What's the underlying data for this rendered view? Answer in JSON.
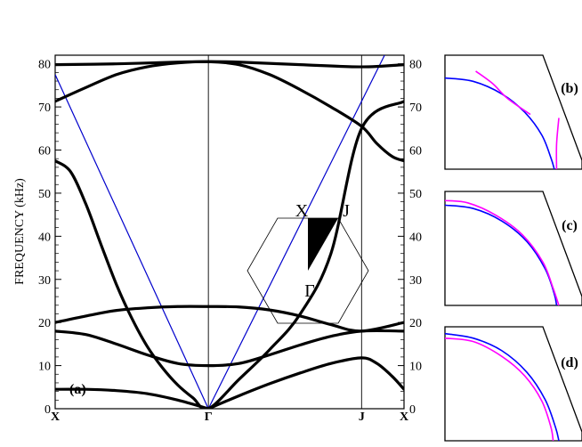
{
  "chart_data": [
    {
      "type": "line",
      "panel_label": "(a)",
      "ylabel": "FREQUENCY (kHz)",
      "ylim": [
        0,
        82
      ],
      "yticks_left": [
        "0",
        "10",
        "20",
        "30",
        "40",
        "50",
        "60",
        "70",
        "80"
      ],
      "yticks_right": [
        "0",
        "10",
        "20",
        "30",
        "40",
        "50",
        "60",
        "70",
        "80"
      ],
      "x_points": [
        "X",
        "Γ",
        "J",
        "X"
      ],
      "x_point_positions": [
        0,
        1,
        2,
        2.277
      ],
      "grid": false,
      "bands": [
        {
          "x": [
            0,
            0.2,
            0.4,
            0.6,
            0.8,
            1.0
          ],
          "y": [
            4.5,
            4.5,
            4.2,
            3.5,
            2.0,
            0
          ]
        },
        {
          "x": [
            1.0,
            1.2,
            1.4,
            1.6,
            1.8,
            2.0,
            2.1,
            2.2,
            2.277
          ],
          "y": [
            0,
            3.0,
            5.8,
            8.3,
            10.5,
            11.8,
            10.5,
            7.5,
            4.5
          ]
        },
        {
          "x": [
            0,
            0.2,
            0.4,
            0.6,
            0.8,
            1.0,
            1.2,
            1.4,
            1.6,
            1.8,
            2.0,
            2.277
          ],
          "y": [
            18.0,
            17.2,
            15.0,
            12.5,
            10.5,
            10.0,
            10.5,
            12.5,
            14.8,
            16.8,
            18.0,
            18.0
          ]
        },
        {
          "x": [
            0,
            0.2,
            0.4,
            0.6,
            0.8,
            1.0,
            1.2,
            1.4,
            1.6,
            1.8,
            2.0,
            2.277
          ],
          "y": [
            20.0,
            21.5,
            22.8,
            23.4,
            23.7,
            23.7,
            23.6,
            22.9,
            21.5,
            19.5,
            18.0,
            20.0
          ]
        },
        {
          "x": [
            0,
            0.1,
            0.2,
            0.3,
            0.4,
            0.5,
            0.6,
            0.7,
            0.8,
            0.9,
            1.0,
            1.2,
            1.4,
            1.6,
            1.8,
            2.0,
            2.277
          ],
          "y": [
            57.5,
            55.0,
            47.5,
            38.0,
            28.8,
            21.0,
            14.5,
            9.5,
            5.5,
            2.5,
            0,
            6.8,
            13.7,
            22.0,
            36.0,
            65.0,
            71.3
          ]
        },
        {
          "x": [
            0,
            0.2,
            0.4,
            0.6,
            0.8,
            1.0,
            1.2,
            1.4,
            1.6,
            1.8,
            2.0,
            2.1,
            2.2,
            2.277
          ],
          "y": [
            71.3,
            74.5,
            77.5,
            79.3,
            80.2,
            80.5,
            79.8,
            77.5,
            74.0,
            70.0,
            65.5,
            61.5,
            58.5,
            57.5
          ]
        },
        {
          "x": [
            0,
            0.4,
            0.8,
            1.0,
            1.2,
            1.6,
            2.0,
            2.277
          ],
          "y": [
            79.8,
            80.0,
            80.4,
            80.5,
            80.4,
            79.8,
            79.3,
            79.8
          ]
        }
      ],
      "sound_lines": [
        {
          "x": [
            0,
            1.0,
            2.15
          ],
          "y": [
            77.5,
            0,
            82.0
          ]
        }
      ],
      "colors": {
        "bands": "#000000",
        "sound_lines": "#0000cc"
      },
      "inset": {
        "labels": [
          "X",
          "J",
          "Γ"
        ]
      }
    },
    {
      "type": "line",
      "panel_label": "(b)",
      "series": [
        {
          "color": "#0000ff",
          "points": [
            [
              0.0,
              0.8
            ],
            [
              0.25,
              0.77
            ],
            [
              0.5,
              0.66
            ],
            [
              0.7,
              0.5
            ],
            [
              0.85,
              0.3
            ],
            [
              0.93,
              0.1
            ],
            [
              0.96,
              0.0
            ]
          ]
        },
        {
          "color": "#ff00ff",
          "points": [
            [
              0.27,
              0.86
            ],
            [
              0.42,
              0.75
            ],
            [
              0.55,
              0.62
            ],
            [
              0.75,
              0.48
            ]
          ]
        },
        {
          "color": "#ff00ff",
          "points": [
            [
              0.98,
              0.0
            ],
            [
              0.98,
              0.22
            ],
            [
              1.0,
              0.45
            ]
          ]
        }
      ]
    },
    {
      "type": "line",
      "panel_label": "(c)",
      "series": [
        {
          "color": "#0000ff",
          "points": [
            [
              0.0,
              0.88
            ],
            [
              0.25,
              0.85
            ],
            [
              0.5,
              0.74
            ],
            [
              0.72,
              0.56
            ],
            [
              0.88,
              0.32
            ],
            [
              0.96,
              0.1
            ],
            [
              0.98,
              0.0
            ]
          ]
        },
        {
          "color": "#ff00ff",
          "points": [
            [
              0.0,
              0.92
            ],
            [
              0.2,
              0.9
            ],
            [
              0.45,
              0.79
            ],
            [
              0.68,
              0.62
            ],
            [
              0.86,
              0.38
            ],
            [
              0.95,
              0.15
            ],
            [
              1.0,
              0.0
            ]
          ]
        }
      ]
    },
    {
      "type": "line",
      "panel_label": "(d)",
      "series": [
        {
          "color": "#0000ff",
          "points": [
            [
              0.0,
              0.94
            ],
            [
              0.25,
              0.9
            ],
            [
              0.5,
              0.79
            ],
            [
              0.72,
              0.6
            ],
            [
              0.88,
              0.36
            ],
            [
              0.97,
              0.12
            ],
            [
              1.0,
              0.0
            ]
          ]
        },
        {
          "color": "#ff00ff",
          "points": [
            [
              0.0,
              0.9
            ],
            [
              0.25,
              0.87
            ],
            [
              0.5,
              0.74
            ],
            [
              0.7,
              0.57
            ],
            [
              0.85,
              0.35
            ],
            [
              0.93,
              0.12
            ],
            [
              0.95,
              0.0
            ]
          ]
        }
      ]
    }
  ]
}
